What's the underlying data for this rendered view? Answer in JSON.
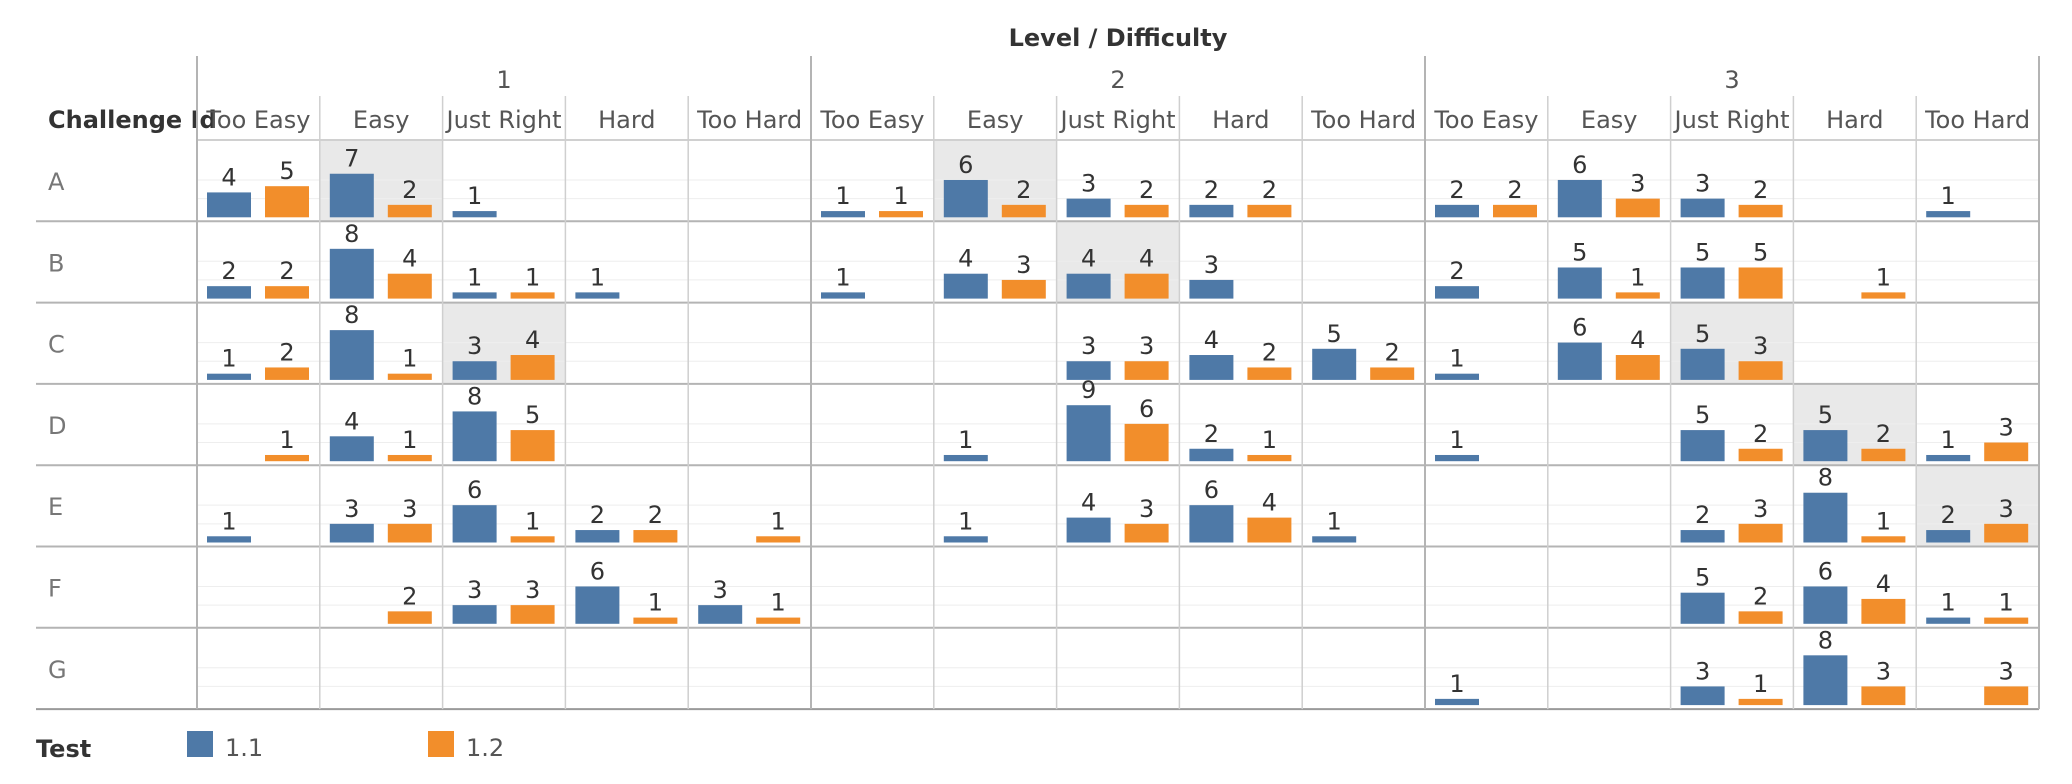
{
  "chart_data": {
    "type": "bar",
    "title": "Level / Difficulty",
    "row_header": "Challenge Id",
    "rows": [
      "A",
      "B",
      "C",
      "D",
      "E",
      "F",
      "G"
    ],
    "levels": [
      "1",
      "2",
      "3"
    ],
    "difficulties": [
      "Too Easy",
      "Easy",
      "Just Right",
      "Hard",
      "Too Hard"
    ],
    "legend_title": "Test",
    "series": [
      {
        "name": "1.1",
        "color": "#4e79a7"
      },
      {
        "name": "1.2",
        "color": "#f28e2b"
      }
    ],
    "ymax": 9,
    "values": [
      [
        [
          [
            4,
            5
          ],
          [
            7,
            2
          ],
          [
            1,
            null
          ],
          [
            null,
            null
          ],
          [
            null,
            null
          ]
        ],
        [
          [
            1,
            1
          ],
          [
            6,
            2
          ],
          [
            3,
            2
          ],
          [
            2,
            2
          ],
          [
            null,
            null
          ]
        ],
        [
          [
            2,
            2
          ],
          [
            6,
            3
          ],
          [
            3,
            2
          ],
          [
            null,
            null
          ],
          [
            1,
            null
          ]
        ]
      ],
      [
        [
          [
            2,
            2
          ],
          [
            8,
            4
          ],
          [
            1,
            1
          ],
          [
            1,
            null
          ],
          [
            null,
            null
          ]
        ],
        [
          [
            1,
            null
          ],
          [
            4,
            3
          ],
          [
            4,
            4
          ],
          [
            3,
            null
          ],
          [
            null,
            null
          ]
        ],
        [
          [
            2,
            null
          ],
          [
            5,
            1
          ],
          [
            5,
            5
          ],
          [
            null,
            1
          ],
          [
            null,
            null
          ]
        ]
      ],
      [
        [
          [
            1,
            2
          ],
          [
            8,
            1
          ],
          [
            3,
            4
          ],
          [
            null,
            null
          ],
          [
            null,
            null
          ]
        ],
        [
          [
            null,
            null
          ],
          [
            null,
            null
          ],
          [
            3,
            3
          ],
          [
            4,
            2
          ],
          [
            5,
            2
          ]
        ],
        [
          [
            1,
            null
          ],
          [
            6,
            4
          ],
          [
            5,
            3
          ],
          [
            null,
            null
          ],
          [
            null,
            null
          ]
        ]
      ],
      [
        [
          [
            null,
            1
          ],
          [
            4,
            1
          ],
          [
            8,
            5
          ],
          [
            null,
            null
          ],
          [
            null,
            null
          ]
        ],
        [
          [
            null,
            null
          ],
          [
            1,
            null
          ],
          [
            9,
            6
          ],
          [
            2,
            1
          ],
          [
            null,
            null
          ]
        ],
        [
          [
            1,
            null
          ],
          [
            null,
            null
          ],
          [
            5,
            2
          ],
          [
            5,
            2
          ],
          [
            1,
            3
          ]
        ]
      ],
      [
        [
          [
            1,
            null
          ],
          [
            3,
            3
          ],
          [
            6,
            1
          ],
          [
            2,
            2
          ],
          [
            null,
            1
          ]
        ],
        [
          [
            null,
            null
          ],
          [
            1,
            null
          ],
          [
            4,
            3
          ],
          [
            6,
            4
          ],
          [
            1,
            null
          ]
        ],
        [
          [
            null,
            null
          ],
          [
            null,
            null
          ],
          [
            2,
            3
          ],
          [
            8,
            1
          ],
          [
            2,
            3
          ]
        ]
      ],
      [
        [
          [
            null,
            null
          ],
          [
            null,
            2
          ],
          [
            3,
            3
          ],
          [
            6,
            1
          ],
          [
            3,
            1
          ]
        ],
        [
          [
            null,
            null
          ],
          [
            null,
            null
          ],
          [
            null,
            null
          ],
          [
            null,
            null
          ],
          [
            null,
            null
          ]
        ],
        [
          [
            null,
            null
          ],
          [
            null,
            null
          ],
          [
            5,
            2
          ],
          [
            6,
            4
          ],
          [
            1,
            1
          ]
        ]
      ],
      [
        [
          [
            null,
            null
          ],
          [
            null,
            null
          ],
          [
            null,
            null
          ],
          [
            null,
            null
          ],
          [
            null,
            null
          ]
        ],
        [
          [
            null,
            null
          ],
          [
            null,
            null
          ],
          [
            null,
            null
          ],
          [
            null,
            null
          ],
          [
            null,
            null
          ]
        ],
        [
          [
            1,
            null
          ],
          [
            null,
            null
          ],
          [
            3,
            1
          ],
          [
            8,
            3
          ],
          [
            null,
            3
          ]
        ]
      ]
    ],
    "highlighted": [
      [
        0,
        2,
        2
      ],
      [
        0,
        1,
        0
      ],
      [
        1,
        1,
        0
      ],
      [
        1,
        2,
        1
      ],
      [
        2,
        2,
        2
      ],
      [
        3,
        3,
        3
      ],
      [
        2,
        3,
        3
      ],
      [
        3,
        4,
        3
      ],
      [
        2,
        4,
        4
      ]
    ]
  }
}
